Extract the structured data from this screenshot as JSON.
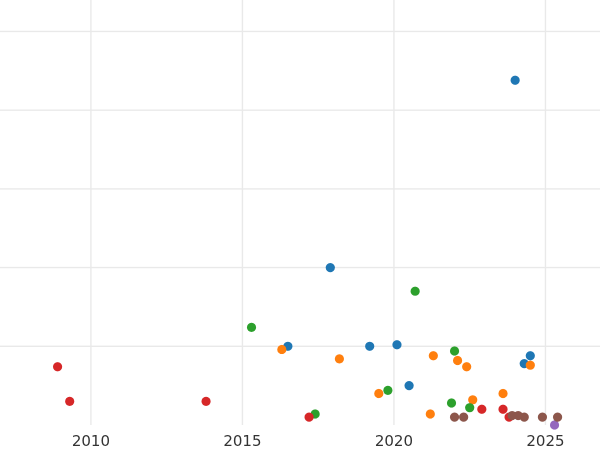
{
  "chart_data": {
    "type": "scatter",
    "title": "",
    "xlabel": "",
    "ylabel": "",
    "xlim": [
      2007.0,
      2026.8
    ],
    "ylim": [
      0,
      27
    ],
    "grid": true,
    "legend": "none",
    "x_ticks": [
      {
        "value": 2010,
        "label": "2010"
      },
      {
        "value": 2015,
        "label": "2015"
      },
      {
        "value": 2020,
        "label": "2020"
      },
      {
        "value": 2025,
        "label": "2025"
      }
    ],
    "y_gridlines": [
      5,
      10,
      15,
      20,
      25
    ],
    "series": [
      {
        "color": "#1f77b4",
        "points": [
          {
            "x": 2016.5,
            "y": 5.0
          },
          {
            "x": 2017.9,
            "y": 10.0
          },
          {
            "x": 2019.2,
            "y": 5.0
          },
          {
            "x": 2020.1,
            "y": 5.1
          },
          {
            "x": 2020.5,
            "y": 2.5
          },
          {
            "x": 2024.0,
            "y": 21.9
          },
          {
            "x": 2024.3,
            "y": 3.9
          },
          {
            "x": 2024.5,
            "y": 4.4
          }
        ]
      },
      {
        "color": "#ff7f0e",
        "points": [
          {
            "x": 2016.3,
            "y": 4.8
          },
          {
            "x": 2018.2,
            "y": 4.2
          },
          {
            "x": 2019.5,
            "y": 2.0
          },
          {
            "x": 2021.2,
            "y": 0.7
          },
          {
            "x": 2021.3,
            "y": 4.4
          },
          {
            "x": 2022.1,
            "y": 4.1
          },
          {
            "x": 2022.4,
            "y": 3.7
          },
          {
            "x": 2022.6,
            "y": 1.6
          },
          {
            "x": 2023.6,
            "y": 2.0
          },
          {
            "x": 2024.5,
            "y": 3.8
          }
        ]
      },
      {
        "color": "#2ca02c",
        "points": [
          {
            "x": 2015.3,
            "y": 6.2
          },
          {
            "x": 2017.4,
            "y": 0.7
          },
          {
            "x": 2019.8,
            "y": 2.2
          },
          {
            "x": 2020.7,
            "y": 8.5
          },
          {
            "x": 2021.9,
            "y": 1.4
          },
          {
            "x": 2022.0,
            "y": 4.7
          },
          {
            "x": 2022.5,
            "y": 1.1
          }
        ]
      },
      {
        "color": "#d62728",
        "points": [
          {
            "x": 2008.9,
            "y": 3.7
          },
          {
            "x": 2009.3,
            "y": 1.5
          },
          {
            "x": 2013.8,
            "y": 1.5
          },
          {
            "x": 2017.2,
            "y": 0.5
          },
          {
            "x": 2022.9,
            "y": 1.0
          },
          {
            "x": 2023.6,
            "y": 1.0
          },
          {
            "x": 2023.8,
            "y": 0.5
          }
        ]
      },
      {
        "color": "#9467bd",
        "points": [
          {
            "x": 2025.3,
            "y": 0.0
          }
        ]
      },
      {
        "color": "#8c564b",
        "points": [
          {
            "x": 2022.0,
            "y": 0.5
          },
          {
            "x": 2022.3,
            "y": 0.5
          },
          {
            "x": 2023.9,
            "y": 0.6
          },
          {
            "x": 2024.1,
            "y": 0.6
          },
          {
            "x": 2024.3,
            "y": 0.5
          },
          {
            "x": 2024.9,
            "y": 0.5
          },
          {
            "x": 2025.4,
            "y": 0.5
          }
        ]
      }
    ]
  }
}
